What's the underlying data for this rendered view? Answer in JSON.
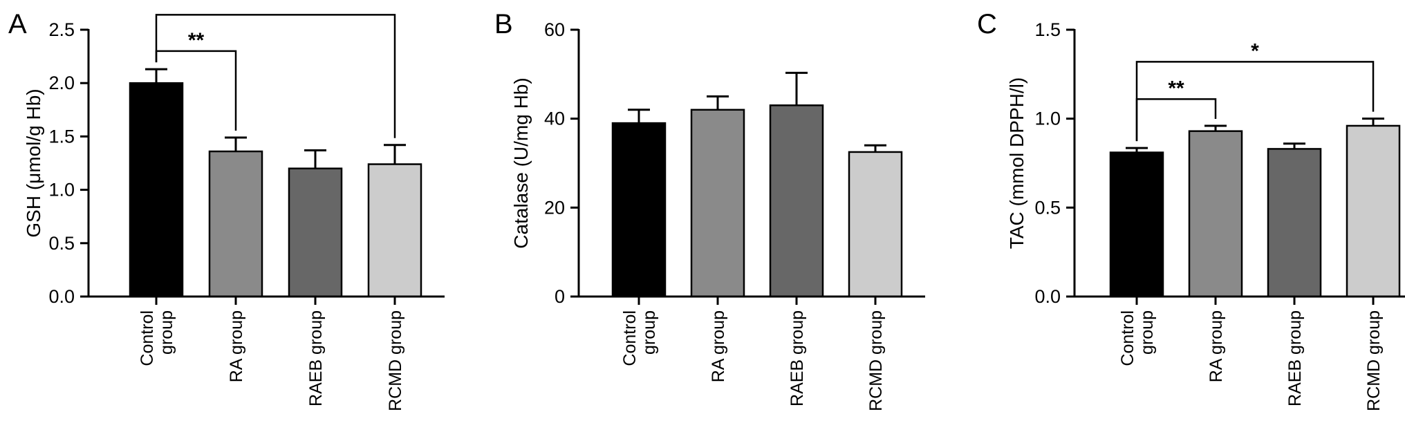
{
  "chart_data": [
    {
      "type": "bar",
      "panel_label": "A",
      "ylabel": "GSH (μmol/g Hb)",
      "categories": [
        "Control group",
        "RA group",
        "RAEB group",
        "RCMD group"
      ],
      "category_lines": [
        [
          "Control",
          "group"
        ],
        [
          "RA group"
        ],
        [
          "RAEB group"
        ],
        [
          "RCMD group"
        ]
      ],
      "values": [
        2.0,
        1.36,
        1.2,
        1.24
      ],
      "errors": [
        0.13,
        0.13,
        0.17,
        0.18
      ],
      "bar_colors": [
        "#000000",
        "#8a8a8a",
        "#676767",
        "#cccccc"
      ],
      "ylim": [
        0,
        2.5
      ],
      "yticks": [
        0.0,
        0.5,
        1.0,
        1.5,
        2.0,
        2.5
      ],
      "ytick_labels": [
        "0.0",
        "0.5",
        "1.0",
        "1.5",
        "2.0",
        "2.5"
      ],
      "grid": false,
      "significance": [
        {
          "from": 0,
          "to": 1,
          "label": "**",
          "level": 2.3
        },
        {
          "from": 0,
          "to": 3,
          "label": "",
          "level": 2.64
        }
      ]
    },
    {
      "type": "bar",
      "panel_label": "B",
      "ylabel": "Catalase (U/mg Hb)",
      "categories": [
        "Control group",
        "RA group",
        "RAEB group",
        "RCMD group"
      ],
      "category_lines": [
        [
          "Control",
          "group"
        ],
        [
          "RA group"
        ],
        [
          "RAEB group"
        ],
        [
          "RCMD group"
        ]
      ],
      "values": [
        39,
        42,
        43,
        32.5
      ],
      "errors": [
        3,
        3,
        7.3,
        1.5
      ],
      "bar_colors": [
        "#000000",
        "#8a8a8a",
        "#676767",
        "#cccccc"
      ],
      "ylim": [
        0,
        60
      ],
      "yticks": [
        0,
        20,
        40,
        60
      ],
      "ytick_labels": [
        "0",
        "20",
        "40",
        "60"
      ],
      "grid": false,
      "significance": []
    },
    {
      "type": "bar",
      "panel_label": "C",
      "ylabel": "TAC (mmol DPPH/l)",
      "categories": [
        "Control group",
        "RA group",
        "RAEB group",
        "RCMD group"
      ],
      "category_lines": [
        [
          "Control",
          "group"
        ],
        [
          "RA group"
        ],
        [
          "RAEB group"
        ],
        [
          "RCMD group"
        ]
      ],
      "values": [
        0.81,
        0.93,
        0.83,
        0.96
      ],
      "errors": [
        0.025,
        0.03,
        0.03,
        0.04
      ],
      "bar_colors": [
        "#000000",
        "#8a8a8a",
        "#676767",
        "#cccccc"
      ],
      "ylim": [
        0,
        1.5
      ],
      "yticks": [
        0.0,
        0.5,
        1.0,
        1.5
      ],
      "ytick_labels": [
        "0.0",
        "0.5",
        "1.0",
        "1.5"
      ],
      "grid": false,
      "significance": [
        {
          "from": 0,
          "to": 1,
          "label": "**",
          "level": 1.11
        },
        {
          "from": 0,
          "to": 3,
          "label": "*",
          "level": 1.32
        }
      ]
    }
  ]
}
